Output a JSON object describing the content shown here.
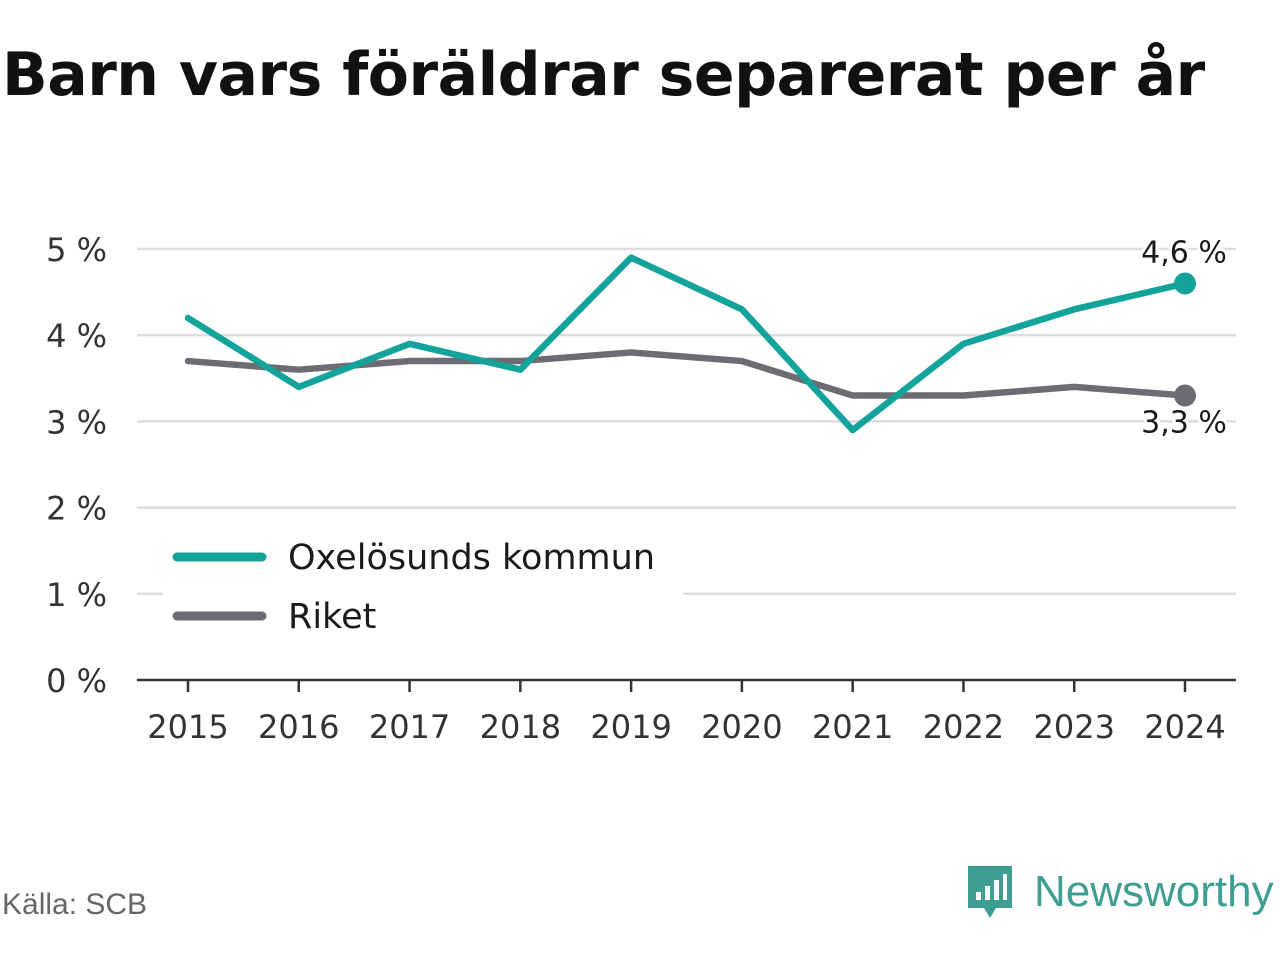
{
  "title": "Barn vars föräldrar separerat per år",
  "source": "Källa: SCB",
  "brand": {
    "name": "Newsworthy",
    "color": "#3e9e91",
    "icon": "newsworthy-logo-icon"
  },
  "colors": {
    "series_a": "#14a39a",
    "series_b": "#6d6c73",
    "grid": "#dddddd",
    "axis": "#333333"
  },
  "chart_data": {
    "type": "line",
    "x": [
      "2015",
      "2016",
      "2017",
      "2018",
      "2019",
      "2020",
      "2021",
      "2022",
      "2023",
      "2024"
    ],
    "ylim": [
      0,
      5
    ],
    "yticks": [
      {
        "value": 0,
        "label": "0 %"
      },
      {
        "value": 1,
        "label": "1 %"
      },
      {
        "value": 2,
        "label": "2 %"
      },
      {
        "value": 3,
        "label": "3 %"
      },
      {
        "value": 4,
        "label": "4 %"
      },
      {
        "value": 5,
        "label": "5 %"
      }
    ],
    "grid": true,
    "legend_position": "bottom-left",
    "series": [
      {
        "name": "Oxelösunds kommun",
        "color": "#14a39a",
        "values": [
          4.2,
          3.4,
          3.9,
          3.6,
          4.9,
          4.3,
          2.9,
          3.9,
          4.3,
          4.6
        ],
        "end_label": "4,6 %"
      },
      {
        "name": "Riket",
        "color": "#6d6c73",
        "values": [
          3.7,
          3.6,
          3.7,
          3.7,
          3.8,
          3.7,
          3.3,
          3.3,
          3.4,
          3.3
        ],
        "end_label": "3,3 %"
      }
    ]
  }
}
